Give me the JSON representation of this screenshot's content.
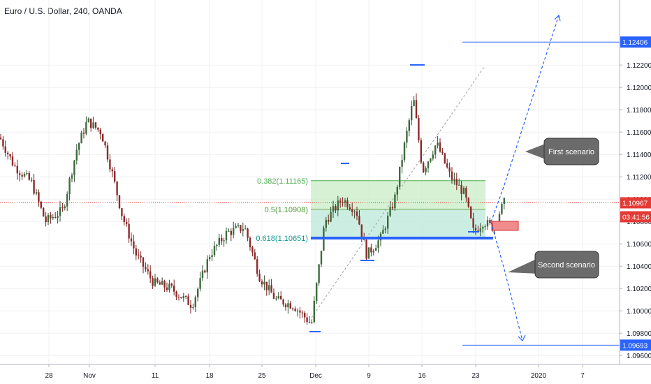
{
  "chart_data": {
    "type": "candlestick",
    "title": "Euro / U.S. Dollar, 240, OANDA",
    "y_ticks": [
      "1.09600",
      "1.09800",
      "1.10000",
      "1.10200",
      "1.10400",
      "1.10600",
      "1.10800",
      "1.11000",
      "1.11200",
      "1.11400",
      "1.11600",
      "1.11800",
      "1.12000",
      "1.12200"
    ],
    "x_ticks": [
      "28",
      "Nov",
      "11",
      "18",
      "25",
      "Dec",
      "9",
      "16",
      "23",
      "2020",
      "7"
    ],
    "ylim": [
      1.0952,
      1.1272
    ],
    "price_labels": {
      "top_target": "1.12406",
      "current_price": "1.10967",
      "countdown": "03:41:56",
      "bottom_target": "1.09693"
    },
    "fibonacci": [
      {
        "label": "0.382(1.11165)",
        "price": 1.11165
      },
      {
        "label": "0.5(1.10908)",
        "price": 1.10908
      },
      {
        "label": "0.618(1.10651)",
        "price": 1.10651
      }
    ],
    "annotations": {
      "first": "First scenario",
      "second": "Second scenario"
    },
    "colors": {
      "bull": "#2f4f2f",
      "bear": "#7a1f1f",
      "accent": "#2962ff",
      "fib_382": "#4caf50",
      "fib_618": "#0f9d8f",
      "current": "#e53935",
      "stop_box": "#f28b8b",
      "label_box": "#6b6b6b"
    }
  }
}
